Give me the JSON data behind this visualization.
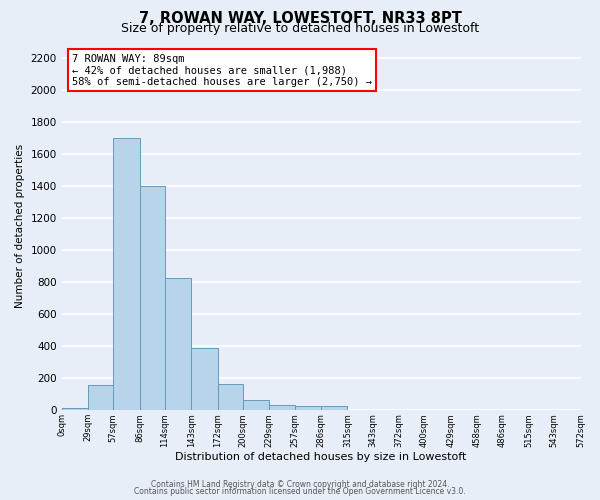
{
  "title": "7, ROWAN WAY, LOWESTOFT, NR33 8PT",
  "subtitle": "Size of property relative to detached houses in Lowestoft",
  "xlabel": "Distribution of detached houses by size in Lowestoft",
  "ylabel": "Number of detached properties",
  "bar_edges": [
    0,
    29,
    57,
    86,
    114,
    143,
    172,
    200,
    229,
    257,
    286,
    315,
    343,
    372,
    400,
    429,
    458,
    486,
    515,
    543,
    572
  ],
  "bar_heights": [
    15,
    160,
    1700,
    1400,
    830,
    390,
    165,
    65,
    30,
    25,
    25,
    0,
    0,
    0,
    0,
    0,
    0,
    0,
    0,
    0
  ],
  "bar_color": "#b8d4ea",
  "bar_edge_color": "#6699bb",
  "annotation_title": "7 ROWAN WAY: 89sqm",
  "annotation_line1": "← 42% of detached houses are smaller (1,988)",
  "annotation_line2": "58% of semi-detached houses are larger (2,750) →",
  "ylim": [
    0,
    2300
  ],
  "yticks": [
    0,
    200,
    400,
    600,
    800,
    1000,
    1200,
    1400,
    1600,
    1800,
    2000,
    2200
  ],
  "tick_labels": [
    "0sqm",
    "29sqm",
    "57sqm",
    "86sqm",
    "114sqm",
    "143sqm",
    "172sqm",
    "200sqm",
    "229sqm",
    "257sqm",
    "286sqm",
    "315sqm",
    "343sqm",
    "372sqm",
    "400sqm",
    "429sqm",
    "458sqm",
    "486sqm",
    "515sqm",
    "543sqm",
    "572sqm"
  ],
  "footer1": "Contains HM Land Registry data © Crown copyright and database right 2024.",
  "footer2": "Contains public sector information licensed under the Open Government Licence v3.0.",
  "bg_color": "#e8eef8",
  "plot_bg_color": "#e8eef8",
  "grid_color": "white",
  "title_fontsize": 10.5,
  "subtitle_fontsize": 9
}
